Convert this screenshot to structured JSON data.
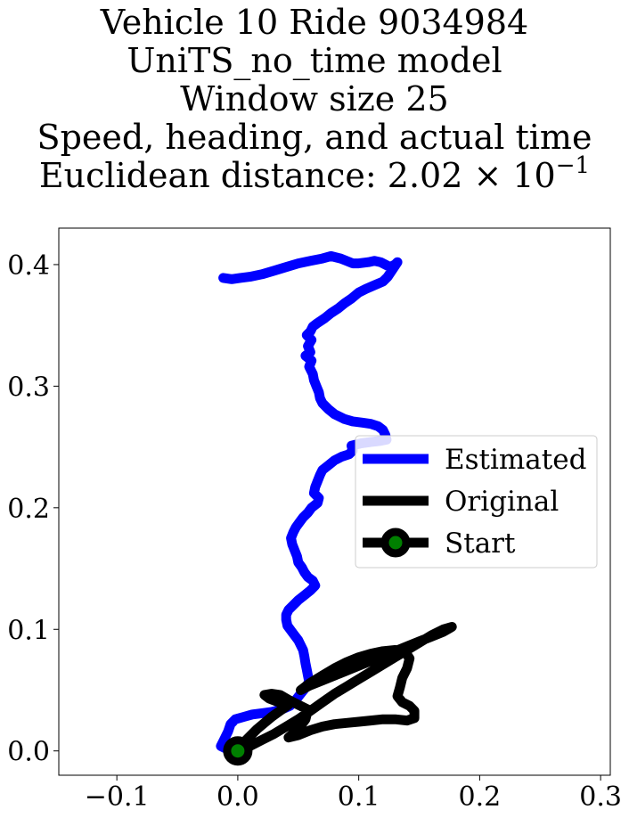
{
  "chart_data": {
    "type": "line",
    "title_lines": [
      "Vehicle 10 Ride 9034984",
      "UniTS_no_time model",
      "Window size 25",
      "Speed, heading, and actual time",
      "Euclidean distance: 2.02 × 10"
    ],
    "title_exponent": "−1",
    "xlim": [
      -0.148,
      0.308
    ],
    "ylim": [
      -0.02,
      0.43
    ],
    "xticks": [
      -0.1,
      0.0,
      0.1,
      0.2,
      0.3
    ],
    "xtick_labels": [
      "−0.1",
      "0.0",
      "0.1",
      "0.2",
      "0.3"
    ],
    "yticks": [
      0.0,
      0.1,
      0.2,
      0.3,
      0.4
    ],
    "ytick_labels": [
      "0.0",
      "0.1",
      "0.2",
      "0.3",
      "0.4"
    ],
    "legend_position": "center-right",
    "series": [
      {
        "name": "Estimated",
        "color": "#0000ff",
        "points": [
          [
            -0.012,
            0.389
          ],
          [
            -0.005,
            0.388
          ],
          [
            0.002,
            0.389
          ],
          [
            0.01,
            0.39
          ],
          [
            0.02,
            0.392
          ],
          [
            0.03,
            0.395
          ],
          [
            0.04,
            0.398
          ],
          [
            0.05,
            0.401
          ],
          [
            0.06,
            0.403
          ],
          [
            0.07,
            0.405
          ],
          [
            0.077,
            0.407
          ],
          [
            0.085,
            0.405
          ],
          [
            0.09,
            0.403
          ],
          [
            0.095,
            0.401
          ],
          [
            0.1,
            0.401
          ],
          [
            0.108,
            0.402
          ],
          [
            0.113,
            0.403
          ],
          [
            0.118,
            0.402
          ],
          [
            0.122,
            0.4
          ],
          [
            0.126,
            0.398
          ],
          [
            0.13,
            0.4
          ],
          [
            0.132,
            0.402
          ],
          [
            0.128,
            0.396
          ],
          [
            0.124,
            0.39
          ],
          [
            0.12,
            0.386
          ],
          [
            0.113,
            0.383
          ],
          [
            0.106,
            0.38
          ],
          [
            0.1,
            0.377
          ],
          [
            0.094,
            0.372
          ],
          [
            0.088,
            0.368
          ],
          [
            0.083,
            0.364
          ],
          [
            0.077,
            0.36
          ],
          [
            0.072,
            0.356
          ],
          [
            0.066,
            0.352
          ],
          [
            0.062,
            0.349
          ],
          [
            0.06,
            0.345
          ],
          [
            0.057,
            0.342
          ],
          [
            0.061,
            0.338
          ],
          [
            0.058,
            0.333
          ],
          [
            0.06,
            0.328
          ],
          [
            0.056,
            0.325
          ],
          [
            0.061,
            0.321
          ],
          [
            0.059,
            0.316
          ],
          [
            0.062,
            0.31
          ],
          [
            0.063,
            0.305
          ],
          [
            0.065,
            0.3
          ],
          [
            0.067,
            0.295
          ],
          [
            0.068,
            0.29
          ],
          [
            0.07,
            0.286
          ],
          [
            0.075,
            0.281
          ],
          [
            0.08,
            0.277
          ],
          [
            0.088,
            0.273
          ],
          [
            0.095,
            0.271
          ],
          [
            0.103,
            0.27
          ],
          [
            0.11,
            0.269
          ],
          [
            0.116,
            0.267
          ],
          [
            0.12,
            0.264
          ],
          [
            0.122,
            0.26
          ],
          [
            0.123,
            0.256
          ],
          [
            0.118,
            0.255
          ],
          [
            0.11,
            0.254
          ],
          [
            0.102,
            0.253
          ],
          [
            0.094,
            0.251
          ],
          [
            0.095,
            0.247
          ],
          [
            0.092,
            0.244
          ],
          [
            0.086,
            0.242
          ],
          [
            0.08,
            0.239
          ],
          [
            0.075,
            0.235
          ],
          [
            0.07,
            0.231
          ],
          [
            0.068,
            0.227
          ],
          [
            0.066,
            0.222
          ],
          [
            0.064,
            0.217
          ],
          [
            0.063,
            0.212
          ],
          [
            0.067,
            0.208
          ],
          [
            0.066,
            0.204
          ],
          [
            0.061,
            0.2
          ],
          [
            0.058,
            0.196
          ],
          [
            0.054,
            0.192
          ],
          [
            0.051,
            0.188
          ],
          [
            0.048,
            0.184
          ],
          [
            0.046,
            0.18
          ],
          [
            0.044,
            0.175
          ],
          [
            0.045,
            0.17
          ],
          [
            0.047,
            0.165
          ],
          [
            0.049,
            0.16
          ],
          [
            0.05,
            0.155
          ],
          [
            0.053,
            0.151
          ],
          [
            0.055,
            0.147
          ],
          [
            0.058,
            0.143
          ],
          [
            0.062,
            0.14
          ],
          [
            0.064,
            0.136
          ],
          [
            0.06,
            0.132
          ],
          [
            0.055,
            0.128
          ],
          [
            0.05,
            0.124
          ],
          [
            0.046,
            0.12
          ],
          [
            0.042,
            0.116
          ],
          [
            0.04,
            0.112
          ],
          [
            0.04,
            0.108
          ],
          [
            0.041,
            0.103
          ],
          [
            0.044,
            0.099
          ],
          [
            0.047,
            0.095
          ],
          [
            0.05,
            0.091
          ],
          [
            0.052,
            0.087
          ],
          [
            0.054,
            0.083
          ],
          [
            0.055,
            0.078
          ],
          [
            0.056,
            0.072
          ],
          [
            0.057,
            0.067
          ],
          [
            0.058,
            0.062
          ],
          [
            0.059,
            0.057
          ],
          [
            0.056,
            0.052
          ],
          [
            0.052,
            0.047
          ],
          [
            0.048,
            0.042
          ],
          [
            0.043,
            0.037
          ],
          [
            0.036,
            0.034
          ],
          [
            0.028,
            0.032
          ],
          [
            0.02,
            0.031
          ],
          [
            0.012,
            0.03
          ],
          [
            0.005,
            0.028
          ],
          [
            -0.002,
            0.026
          ],
          [
            -0.006,
            0.022
          ],
          [
            -0.008,
            0.016
          ],
          [
            -0.011,
            0.01
          ],
          [
            -0.014,
            0.004
          ],
          [
            -0.01,
            0.002
          ],
          [
            -0.004,
            0.0
          ]
        ]
      },
      {
        "name": "Original",
        "color": "#000000",
        "points": [
          [
            0.0,
            0.0
          ],
          [
            0.01,
            0.004
          ],
          [
            0.02,
            0.009
          ],
          [
            0.03,
            0.014
          ],
          [
            0.04,
            0.02
          ],
          [
            0.05,
            0.026
          ],
          [
            0.06,
            0.033
          ],
          [
            0.07,
            0.04
          ],
          [
            0.08,
            0.047
          ],
          [
            0.09,
            0.053
          ],
          [
            0.1,
            0.059
          ],
          [
            0.11,
            0.065
          ],
          [
            0.12,
            0.071
          ],
          [
            0.13,
            0.077
          ],
          [
            0.14,
            0.083
          ],
          [
            0.15,
            0.089
          ],
          [
            0.16,
            0.095
          ],
          [
            0.17,
            0.1
          ],
          [
            0.177,
            0.102
          ],
          [
            0.17,
            0.098
          ],
          [
            0.16,
            0.094
          ],
          [
            0.15,
            0.09
          ],
          [
            0.14,
            0.086
          ],
          [
            0.13,
            0.082
          ],
          [
            0.12,
            0.078
          ],
          [
            0.11,
            0.074
          ],
          [
            0.1,
            0.07
          ],
          [
            0.09,
            0.066
          ],
          [
            0.08,
            0.062
          ],
          [
            0.07,
            0.058
          ],
          [
            0.06,
            0.054
          ],
          [
            0.052,
            0.05
          ],
          [
            0.06,
            0.056
          ],
          [
            0.07,
            0.062
          ],
          [
            0.08,
            0.068
          ],
          [
            0.09,
            0.073
          ],
          [
            0.1,
            0.077
          ],
          [
            0.11,
            0.08
          ],
          [
            0.12,
            0.082
          ],
          [
            0.13,
            0.083
          ],
          [
            0.138,
            0.082
          ],
          [
            0.142,
            0.076
          ],
          [
            0.14,
            0.068
          ],
          [
            0.136,
            0.06
          ],
          [
            0.134,
            0.052
          ],
          [
            0.132,
            0.045
          ],
          [
            0.136,
            0.04
          ],
          [
            0.142,
            0.037
          ],
          [
            0.146,
            0.033
          ],
          [
            0.146,
            0.027
          ],
          [
            0.14,
            0.025
          ],
          [
            0.13,
            0.026
          ],
          [
            0.12,
            0.026
          ],
          [
            0.11,
            0.025
          ],
          [
            0.1,
            0.024
          ],
          [
            0.09,
            0.023
          ],
          [
            0.08,
            0.022
          ],
          [
            0.07,
            0.02
          ],
          [
            0.06,
            0.017
          ],
          [
            0.05,
            0.013
          ],
          [
            0.042,
            0.011
          ],
          [
            0.05,
            0.018
          ],
          [
            0.056,
            0.026
          ],
          [
            0.058,
            0.034
          ],
          [
            0.05,
            0.038
          ],
          [
            0.042,
            0.042
          ],
          [
            0.035,
            0.046
          ],
          [
            0.028,
            0.047
          ],
          [
            0.022,
            0.046
          ],
          [
            0.026,
            0.043
          ],
          [
            0.034,
            0.04
          ],
          [
            0.042,
            0.038
          ],
          [
            0.035,
            0.033
          ],
          [
            0.028,
            0.028
          ],
          [
            0.022,
            0.023
          ],
          [
            0.016,
            0.018
          ],
          [
            0.01,
            0.012
          ],
          [
            0.004,
            0.006
          ],
          [
            0.0,
            0.002
          ]
        ]
      }
    ],
    "start_point": {
      "name": "Start",
      "x": 0.0,
      "y": 0.0,
      "color": "#008000",
      "edge_color": "#000000"
    },
    "legend": {
      "entries": [
        {
          "label": "Estimated",
          "color": "#0000ff",
          "marker": false
        },
        {
          "label": "Original",
          "color": "#000000",
          "marker": false
        },
        {
          "label": "Start",
          "color": "#000000",
          "marker": true,
          "marker_fill": "#008000"
        }
      ]
    }
  }
}
